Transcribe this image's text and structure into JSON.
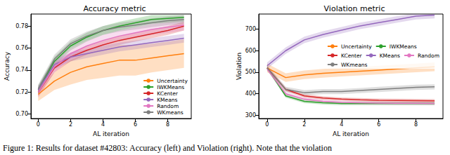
{
  "chart_data": [
    {
      "type": "line",
      "title": "Accuracy metric",
      "x_label": "AL iteration",
      "y_label": "Accuracy",
      "x": [
        0,
        1,
        2,
        3,
        4,
        5,
        6,
        7,
        8,
        9
      ],
      "xlim": [
        -0.45,
        9.45
      ],
      "xticks": [
        0,
        2,
        4,
        6,
        8
      ],
      "ylim": [
        0.696,
        0.791
      ],
      "yticks": [
        {
          "value": 0.7,
          "label": "0.70"
        },
        {
          "value": 0.72,
          "label": "0.72"
        },
        {
          "value": 0.74,
          "label": "0.74"
        },
        {
          "value": 0.76,
          "label": "0.76"
        },
        {
          "value": 0.78,
          "label": "0.78"
        }
      ],
      "grid": false,
      "legend": "lower right",
      "series": [
        {
          "name": "Uncertainty",
          "color": "#ff7f0e",
          "values": [
            0.718,
            0.73,
            0.738,
            0.743,
            0.746,
            0.749,
            0.749,
            0.751,
            0.753,
            0.755
          ],
          "lower": [
            0.712,
            0.722,
            0.727,
            0.731,
            0.733,
            0.735,
            0.735,
            0.738,
            0.74,
            0.742
          ],
          "upper": [
            0.724,
            0.738,
            0.749,
            0.755,
            0.759,
            0.763,
            0.763,
            0.764,
            0.766,
            0.768
          ]
        },
        {
          "name": "IWKMeans",
          "color": "#2ca02c",
          "values": [
            0.722,
            0.748,
            0.762,
            0.77,
            0.776,
            0.78,
            0.783,
            0.786,
            0.787,
            0.788
          ],
          "lower": [
            0.718,
            0.744,
            0.758,
            0.766,
            0.772,
            0.776,
            0.779,
            0.782,
            0.783,
            0.784
          ],
          "upper": [
            0.726,
            0.752,
            0.766,
            0.774,
            0.78,
            0.784,
            0.787,
            0.79,
            0.79,
            0.79
          ]
        },
        {
          "name": "KCenter",
          "color": "#d62728",
          "values": [
            0.72,
            0.742,
            0.752,
            0.758,
            0.763,
            0.767,
            0.77,
            0.773,
            0.776,
            0.78
          ],
          "lower": [
            0.716,
            0.738,
            0.748,
            0.754,
            0.759,
            0.763,
            0.766,
            0.769,
            0.772,
            0.776
          ],
          "upper": [
            0.724,
            0.746,
            0.756,
            0.762,
            0.767,
            0.771,
            0.774,
            0.777,
            0.78,
            0.784
          ]
        },
        {
          "name": "KMeans",
          "color": "#9467bd",
          "values": [
            0.722,
            0.745,
            0.752,
            0.755,
            0.758,
            0.761,
            0.763,
            0.765,
            0.767,
            0.769
          ],
          "lower": [
            0.718,
            0.741,
            0.748,
            0.751,
            0.754,
            0.757,
            0.759,
            0.761,
            0.763,
            0.765
          ],
          "upper": [
            0.726,
            0.749,
            0.756,
            0.759,
            0.762,
            0.765,
            0.767,
            0.769,
            0.771,
            0.773
          ]
        },
        {
          "name": "Random",
          "color": "#e377c2",
          "values": [
            0.72,
            0.743,
            0.755,
            0.762,
            0.767,
            0.771,
            0.774,
            0.777,
            0.779,
            0.781
          ],
          "lower": [
            0.715,
            0.738,
            0.75,
            0.757,
            0.762,
            0.766,
            0.769,
            0.772,
            0.774,
            0.776
          ],
          "upper": [
            0.725,
            0.748,
            0.76,
            0.767,
            0.772,
            0.776,
            0.779,
            0.782,
            0.784,
            0.786
          ]
        },
        {
          "name": "WKmeans",
          "color": "#7f7f7f",
          "values": [
            0.723,
            0.75,
            0.764,
            0.771,
            0.776,
            0.779,
            0.781,
            0.783,
            0.785,
            0.786
          ],
          "lower": [
            0.719,
            0.746,
            0.76,
            0.767,
            0.772,
            0.775,
            0.777,
            0.779,
            0.781,
            0.782
          ],
          "upper": [
            0.727,
            0.754,
            0.768,
            0.775,
            0.78,
            0.783,
            0.785,
            0.787,
            0.789,
            0.79
          ]
        }
      ]
    },
    {
      "type": "line",
      "title": "Violation metric",
      "x_label": "AL iteration",
      "y_label": "Violation",
      "x": [
        0,
        1,
        2,
        3,
        4,
        5,
        6,
        7,
        8,
        9
      ],
      "xlim": [
        -0.45,
        9.45
      ],
      "xticks": [
        0,
        2,
        4,
        6,
        8
      ],
      "ylim": [
        285,
        770
      ],
      "yticks": [
        300,
        400,
        500,
        600,
        700
      ],
      "grid": false,
      "legend": "right",
      "series": [
        {
          "name": "Uncertainty",
          "color": "#ff7f0e",
          "values": [
            520,
            475,
            488,
            495,
            500,
            505,
            510,
            515,
            520,
            525
          ],
          "lower": [
            500,
            455,
            468,
            475,
            480,
            485,
            490,
            495,
            500,
            505
          ],
          "upper": [
            540,
            495,
            508,
            515,
            520,
            525,
            530,
            535,
            540,
            545
          ]
        },
        {
          "name": "IWKMeans",
          "color": "#2ca02c",
          "values": [
            520,
            390,
            365,
            358,
            355,
            355,
            355,
            355,
            355,
            355
          ],
          "lower": [
            512,
            382,
            357,
            350,
            347,
            347,
            347,
            347,
            347,
            347
          ],
          "upper": [
            528,
            398,
            373,
            366,
            363,
            363,
            363,
            363,
            363,
            363
          ]
        },
        {
          "name": "KCenter",
          "color": "#d62728",
          "values": [
            520,
            420,
            390,
            380,
            375,
            372,
            370,
            369,
            368,
            367
          ],
          "lower": [
            512,
            412,
            382,
            372,
            367,
            364,
            362,
            361,
            360,
            359
          ],
          "upper": [
            528,
            428,
            398,
            388,
            383,
            380,
            378,
            377,
            376,
            375
          ]
        },
        {
          "name": "KMeans",
          "color": "#9467bd",
          "values": [
            530,
            600,
            650,
            675,
            695,
            715,
            730,
            745,
            760,
            765
          ],
          "lower": [
            515,
            585,
            635,
            660,
            680,
            700,
            715,
            730,
            745,
            750
          ],
          "upper": [
            545,
            615,
            665,
            690,
            710,
            730,
            745,
            760,
            772,
            777
          ]
        },
        {
          "name": "Random",
          "color": "#e377c2",
          "values": [
            515,
            400,
            375,
            365,
            360,
            358,
            357,
            356,
            356,
            355
          ],
          "lower": [
            507,
            392,
            367,
            357,
            352,
            350,
            349,
            348,
            348,
            347
          ],
          "upper": [
            523,
            408,
            383,
            373,
            368,
            366,
            365,
            364,
            364,
            363
          ]
        },
        {
          "name": "WKmeans",
          "color": "#7f7f7f",
          "values": [
            520,
            420,
            405,
            410,
            410,
            415,
            420,
            425,
            430,
            432
          ],
          "lower": [
            508,
            408,
            393,
            398,
            398,
            403,
            408,
            413,
            418,
            420
          ],
          "upper": [
            532,
            432,
            417,
            422,
            422,
            427,
            432,
            437,
            442,
            444
          ]
        }
      ]
    }
  ],
  "caption": "Figure 1: Results for dataset #42803: Accuracy (left) and Violation (right). Note that the violation"
}
